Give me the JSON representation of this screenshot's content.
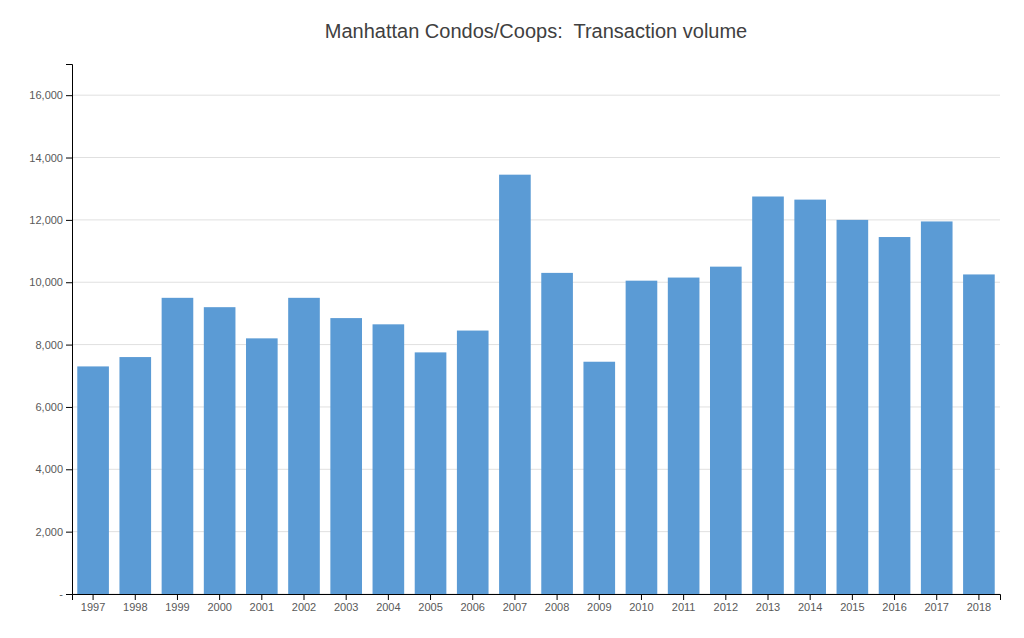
{
  "chart_data": {
    "type": "bar",
    "title": "Manhattan Condos/Coops:  Transaction volume",
    "categories": [
      "1997",
      "1998",
      "1999",
      "2000",
      "2001",
      "2002",
      "2003",
      "2004",
      "2005",
      "2006",
      "2007",
      "2008",
      "2009",
      "2010",
      "2011",
      "2012",
      "2013",
      "2014",
      "2015",
      "2016",
      "2017",
      "2018"
    ],
    "values": [
      7300,
      7600,
      9500,
      9200,
      8200,
      9500,
      8850,
      8650,
      7750,
      8450,
      13450,
      10300,
      7450,
      10050,
      10150,
      10500,
      12750,
      12650,
      12000,
      11450,
      11950,
      10250
    ],
    "color": "#5b9bd5",
    "ylim": [
      0,
      17000
    ],
    "yticks": [
      {
        "value": 0,
        "label": "-"
      },
      {
        "value": 2000,
        "label": "2,000"
      },
      {
        "value": 4000,
        "label": "4,000"
      },
      {
        "value": 6000,
        "label": "6,000"
      },
      {
        "value": 8000,
        "label": "8,000"
      },
      {
        "value": 10000,
        "label": "10,000"
      },
      {
        "value": 12000,
        "label": "12,000"
      },
      {
        "value": 14000,
        "label": "14,000"
      },
      {
        "value": 16000,
        "label": "16,000"
      }
    ],
    "grid": true
  }
}
